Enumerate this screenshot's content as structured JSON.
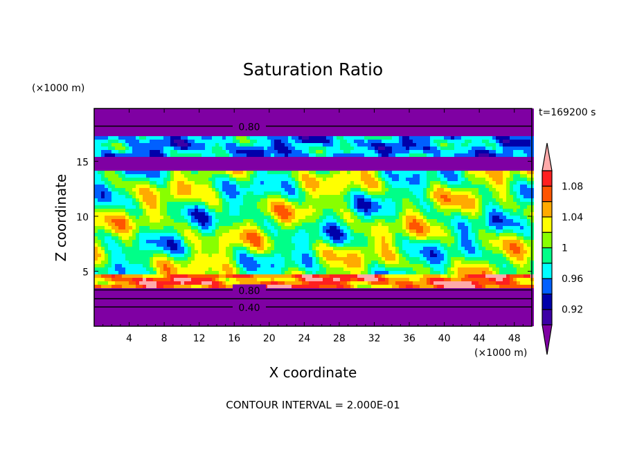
{
  "chart_data": {
    "type": "heatmap",
    "title": "Saturation Ratio",
    "xlabel": "X coordinate",
    "ylabel": "Z coordinate",
    "x_unit": "(×1000 m)",
    "y_unit": "(×1000 m)",
    "time_label": "t=169200 s",
    "footer": "CONTOUR INTERVAL = 2.000E-01",
    "xlim": [
      0,
      50
    ],
    "ylim": [
      0,
      19.8
    ],
    "x_ticks": [
      "4",
      "8",
      "12",
      "16",
      "20",
      "24",
      "28",
      "32",
      "36",
      "40",
      "44",
      "48"
    ],
    "y_ticks": [
      "5",
      "10",
      "15"
    ],
    "contour_labels": [
      "0.80",
      "0.80",
      "0.40"
    ],
    "colorbar": {
      "levels": [
        0.9,
        0.92,
        0.94,
        0.96,
        0.98,
        1.0,
        1.02,
        1.04,
        1.06,
        1.08,
        1.1
      ],
      "tick_labels": [
        "1.08",
        "1.04",
        "1",
        "0.96",
        "0.92"
      ],
      "extend": "both",
      "under_color": "#7f00a3",
      "over_color": "#ffaaaa",
      "colors": [
        "#3c00a6",
        "#0000aa",
        "#0060ff",
        "#00ffff",
        "#00ff88",
        "#88ff00",
        "#ffff00",
        "#ffaa00",
        "#ff5500",
        "#ff2020"
      ]
    },
    "grid": false
  }
}
